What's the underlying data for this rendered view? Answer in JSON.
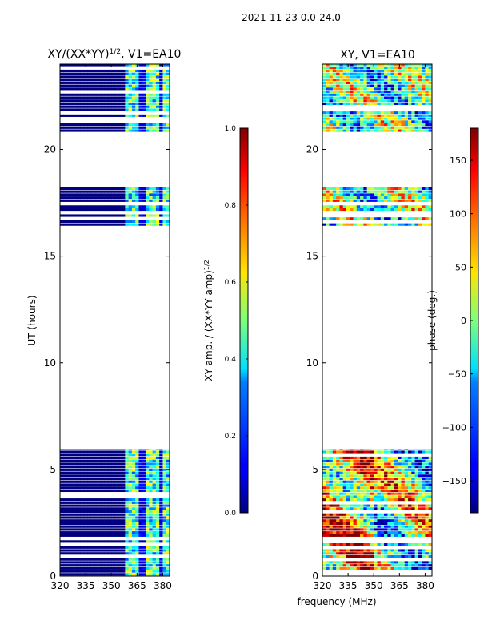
{
  "figure": {
    "suptitle": "2021-11-23 0.0-24.0",
    "xlabel": "frequency (MHz)"
  },
  "chart_data": [
    {
      "type": "heatmap",
      "title": "XY/(XX*YY)",
      "title_exp": "1/2",
      "title_suffix": ", V1=EA10",
      "ylabel": "UT (hours)",
      "xlim": [
        320,
        384
      ],
      "ylim": [
        0,
        24
      ],
      "xticks": [
        320,
        335,
        350,
        365,
        380
      ],
      "yticks": [
        0,
        5,
        10,
        15,
        20
      ],
      "data_blocks_ut_hours": [
        [
          0.0,
          5.95
        ],
        [
          16.4,
          18.25
        ],
        [
          20.8,
          24.0
        ]
      ],
      "colorbar": {
        "label": "XY amp. / (XX*YY amp)",
        "label_exp": "1/2",
        "range": [
          0.0,
          1.0
        ],
        "ticks": [
          0.0,
          0.2,
          0.4,
          0.6,
          0.8,
          1.0
        ],
        "tick_labels": [
          "0.0",
          "0.2",
          "0.4",
          "0.6",
          "0.8",
          "1.0"
        ],
        "colormap": "jet"
      }
    },
    {
      "type": "heatmap",
      "title": "XY, V1=EA10",
      "ylabel": "phase (deg.)",
      "xlim": [
        320,
        384
      ],
      "ylim": [
        0,
        24
      ],
      "xticks": [
        320,
        335,
        350,
        365,
        380
      ],
      "yticks": [
        0,
        5,
        10,
        15,
        20
      ],
      "data_blocks_ut_hours": [
        [
          0.0,
          5.95
        ],
        [
          16.4,
          18.25
        ],
        [
          20.8,
          24.0
        ]
      ],
      "colorbar": {
        "label": "phase (deg.)",
        "range": [
          -180,
          180
        ],
        "ticks": [
          150,
          100,
          50,
          0,
          -50,
          -100,
          -150
        ],
        "tick_labels": [
          "150",
          "100",
          "50",
          "0",
          "−50",
          "−100",
          "−150"
        ],
        "colormap": "jet"
      }
    }
  ]
}
